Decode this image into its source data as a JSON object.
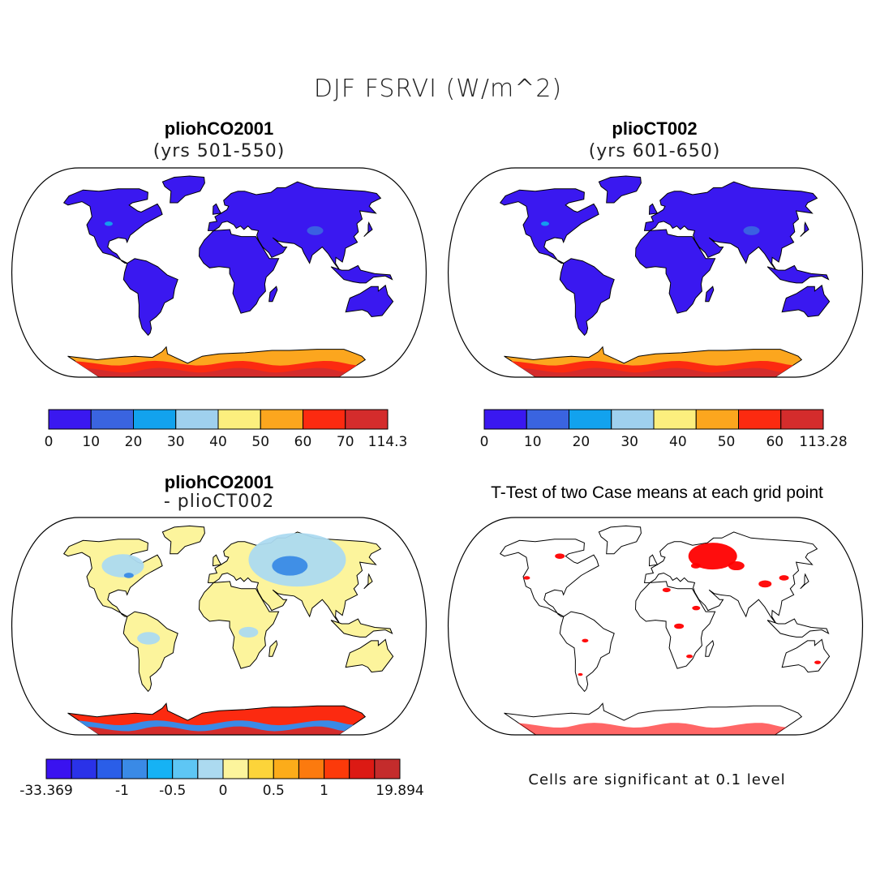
{
  "title": "DJF FSRVI (W/m^2)",
  "panels": [
    {
      "title": "pliohCO2001",
      "subtitle": "(yrs 501-550)"
    },
    {
      "title": "plioCT002",
      "subtitle": "(yrs 601-650)"
    },
    {
      "title": "pliohCO2001",
      "subtitle": "- plioCT002"
    },
    {
      "title": "T-Test of two Case means at each grid point"
    }
  ],
  "colorbars": [
    {
      "labels": [
        "0",
        "10",
        "20",
        "30",
        "40",
        "50",
        "60",
        "70",
        "114.3"
      ],
      "colors": [
        "#3a18f0",
        "#3a64e0",
        "#12a2ee",
        "#9fd0ee",
        "#fcef7e",
        "#fca61e",
        "#fc2a10",
        "#d42c2c"
      ]
    },
    {
      "labels": [
        "0",
        "10",
        "20",
        "30",
        "40",
        "50",
        "60",
        "113.28"
      ],
      "colors": [
        "#3a18f0",
        "#3a64e0",
        "#12a2ee",
        "#9fd0ee",
        "#fcef7e",
        "#fca61e",
        "#fc2a10",
        "#d42c2c"
      ]
    },
    {
      "labels": [
        "-33.369",
        "-1",
        "-0.5",
        "0",
        "0.5",
        "1",
        "19.894"
      ],
      "colors": [
        "#3a12f0",
        "#2a32e8",
        "#2a5ee8",
        "#3a8ae6",
        "#16b2f4",
        "#5ec6f4",
        "#acdaf0",
        "#fcf49c",
        "#fcd43a",
        "#fcac1a",
        "#fc7a0e",
        "#fc3a0a",
        "#dc1a14",
        "#c42c2c"
      ]
    }
  ],
  "note": "Cells are significant at 0.1 level",
  "map_colors": {
    "land_low": "#3a18f0",
    "ice_warm": "#fca61e",
    "ice_hot": "#fc2a10",
    "ice_deep": "#d42c2c",
    "diff_pos": "#fcf49c",
    "diff_neg": "#acdaf0",
    "diff_neg2": "#3a8ae6",
    "signif": "#ff0000"
  }
}
